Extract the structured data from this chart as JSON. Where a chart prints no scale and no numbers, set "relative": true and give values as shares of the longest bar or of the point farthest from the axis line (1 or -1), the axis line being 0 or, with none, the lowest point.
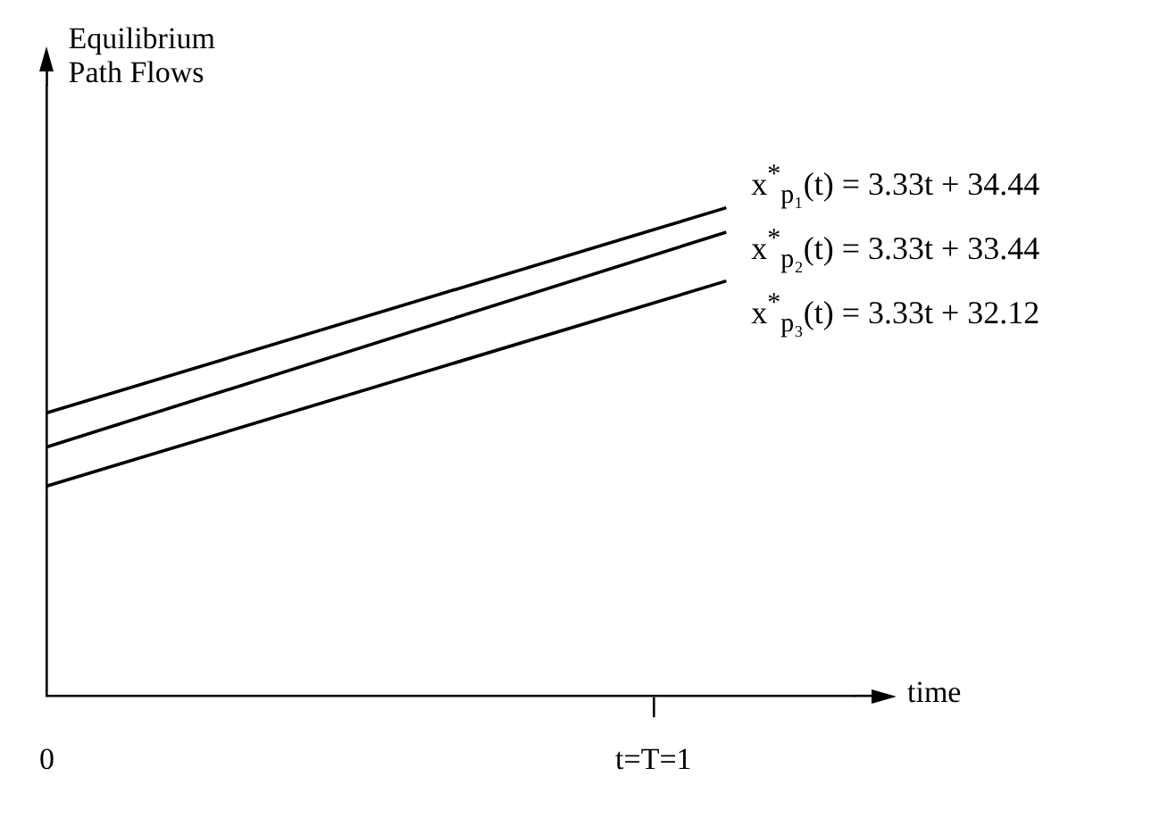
{
  "chart_data": {
    "type": "line",
    "relative": true,
    "ylabel": "Equilibrium Path Flows",
    "xlabel": "time",
    "x": [
      0,
      1.12
    ],
    "xlim": [
      0,
      1.33
    ],
    "xticks": [
      0,
      {
        "value": 1,
        "label": "t=T=1"
      }
    ],
    "grid": false,
    "legend": false,
    "marker": "none",
    "line_style": "solid",
    "series": [
      {
        "name": "x$^{*}$$_{p₁}$(t) = 3.33t + 34.44",
        "color": "#000000",
        "values": [
          0.58,
          1
        ]
      },
      {
        "name": "x$^{*}$$_{p₂}$(t) = 3.33t + 33.44",
        "color": "#000000",
        "values": [
          0.51,
          0.95
        ]
      },
      {
        "name": "x$^{*}$$_{p₃}$(t) = 3.33t + 32.12",
        "color": "#000000",
        "values": [
          0.43,
          0.85
        ]
      }
    ]
  }
}
